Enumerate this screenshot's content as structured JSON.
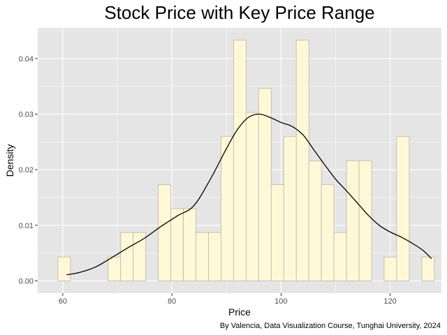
{
  "chart_data": {
    "type": "bar",
    "subtype": "histogram-with-density",
    "title": "Stock Price with Key Price Range",
    "xlabel": "Price",
    "ylabel": "Density",
    "caption": "By Valencia, Data Visualization Course, Tunghai University, 2024",
    "xlim": [
      55.4,
      129.4
    ],
    "ylim": [
      -0.0022,
      0.0455
    ],
    "x_ticks": [
      60,
      80,
      100,
      120
    ],
    "y_ticks": [
      0.0,
      0.01,
      0.02,
      0.03,
      0.04
    ],
    "y_tick_labels": [
      "0.00",
      "0.01",
      "0.02",
      "0.03",
      "0.04"
    ],
    "grid": true,
    "bin_width": 2.3,
    "bins": [
      {
        "x0": 59.1,
        "density": 0.0043
      },
      {
        "x0": 61.4,
        "density": 0.0
      },
      {
        "x0": 63.7,
        "density": 0.0
      },
      {
        "x0": 66.0,
        "density": 0.0
      },
      {
        "x0": 68.3,
        "density": 0.0043
      },
      {
        "x0": 70.6,
        "density": 0.0087
      },
      {
        "x0": 72.9,
        "density": 0.0087
      },
      {
        "x0": 75.2,
        "density": 0.0
      },
      {
        "x0": 77.5,
        "density": 0.0173
      },
      {
        "x0": 79.8,
        "density": 0.013
      },
      {
        "x0": 82.1,
        "density": 0.013
      },
      {
        "x0": 84.4,
        "density": 0.0087
      },
      {
        "x0": 86.7,
        "density": 0.0087
      },
      {
        "x0": 89.0,
        "density": 0.026
      },
      {
        "x0": 91.3,
        "density": 0.0433
      },
      {
        "x0": 93.6,
        "density": 0.0303
      },
      {
        "x0": 95.9,
        "density": 0.0346
      },
      {
        "x0": 98.2,
        "density": 0.0173
      },
      {
        "x0": 100.5,
        "density": 0.026
      },
      {
        "x0": 102.8,
        "density": 0.0433
      },
      {
        "x0": 105.1,
        "density": 0.0216
      },
      {
        "x0": 107.4,
        "density": 0.0173
      },
      {
        "x0": 109.7,
        "density": 0.0087
      },
      {
        "x0": 112.0,
        "density": 0.0216
      },
      {
        "x0": 114.3,
        "density": 0.0216
      },
      {
        "x0": 116.6,
        "density": 0.0
      },
      {
        "x0": 118.9,
        "density": 0.0043
      },
      {
        "x0": 121.2,
        "density": 0.026
      },
      {
        "x0": 123.5,
        "density": 0.0
      },
      {
        "x0": 125.8,
        "density": 0.0043
      }
    ],
    "density_curve": {
      "x": [
        60.7,
        63,
        66,
        69,
        72,
        75,
        78,
        81,
        84,
        87,
        90,
        92,
        94,
        96,
        98,
        100,
        102,
        104,
        106,
        108,
        110,
        112,
        114,
        116,
        118,
        120,
        122,
        124,
        126,
        127.6
      ],
      "y": [
        0.0011,
        0.0015,
        0.0025,
        0.0042,
        0.006,
        0.0077,
        0.0098,
        0.0117,
        0.0135,
        0.0182,
        0.0238,
        0.0272,
        0.0294,
        0.03,
        0.0294,
        0.0285,
        0.0278,
        0.0263,
        0.0236,
        0.0209,
        0.0183,
        0.0162,
        0.014,
        0.0118,
        0.01,
        0.0088,
        0.0079,
        0.0068,
        0.0055,
        0.004
      ]
    },
    "colors": {
      "panel_bg": "#e5e5e5",
      "grid": "#ffffff",
      "bar_fill": "#fff8d6",
      "bar_stroke": "#bdb5ad",
      "curve": "#000000",
      "tick_text": "#4d4d4d"
    }
  }
}
